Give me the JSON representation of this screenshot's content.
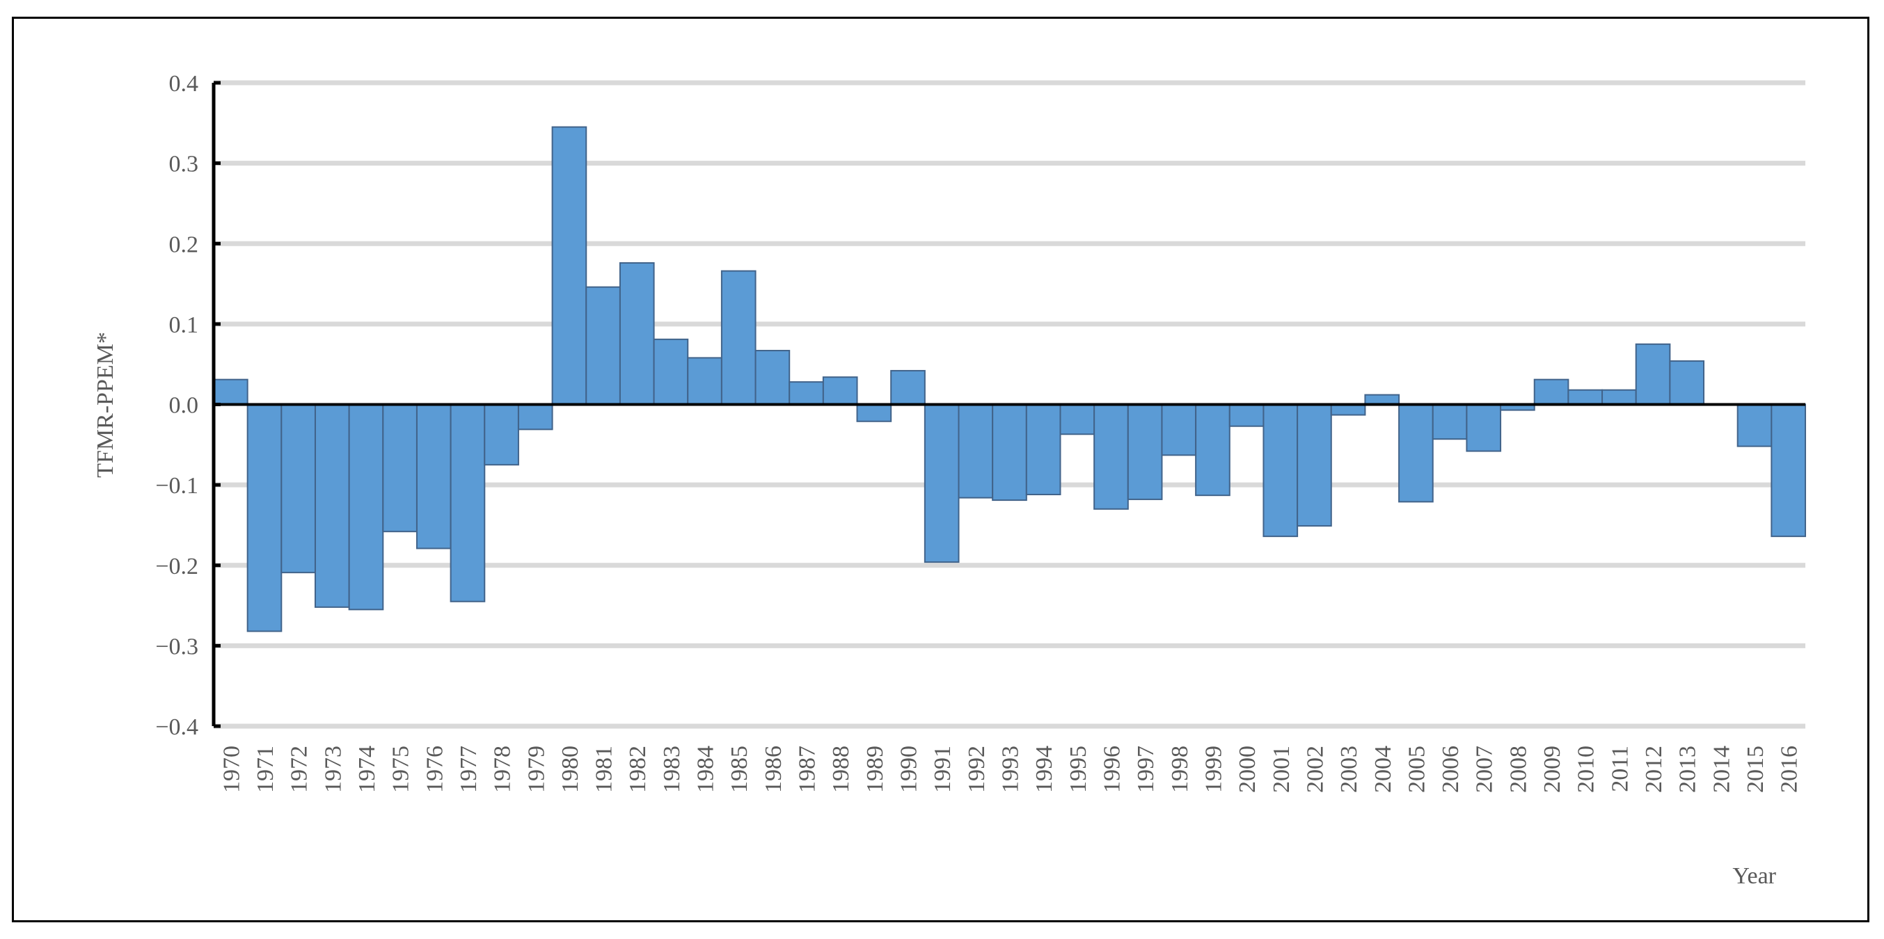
{
  "chart_data": {
    "type": "bar",
    "title": "",
    "xlabel": "Year",
    "ylabel": "TFMR-PPEM*",
    "ylim": [
      -0.4,
      0.4
    ],
    "yticks": [
      "0.4",
      "0.3",
      "0.2",
      "0.1",
      "0.0",
      "−0.1",
      "−0.2",
      "−0.3",
      "−0.4"
    ],
    "ytick_values": [
      0.4,
      0.3,
      0.2,
      0.1,
      0,
      -0.1,
      -0.2,
      -0.3,
      -0.4
    ],
    "grid": "horizontal",
    "bar_color": "#5b9bd5",
    "bar_edge_color": "#41638a",
    "categories": [
      "1970",
      "1971",
      "1972",
      "1973",
      "1974",
      "1975",
      "1976",
      "1977",
      "1978",
      "1979",
      "1980",
      "1981",
      "1982",
      "1983",
      "1984",
      "1985",
      "1986",
      "1987",
      "1988",
      "1989",
      "1990",
      "1991",
      "1992",
      "1993",
      "1994",
      "1995",
      "1996",
      "1997",
      "1998",
      "1999",
      "2000",
      "2001",
      "2002",
      "2003",
      "2004",
      "2005",
      "2006",
      "2007",
      "2008",
      "2009",
      "2010",
      "2011",
      "2012",
      "2013",
      "2014",
      "2015",
      "2016"
    ],
    "values": [
      0.031,
      -0.282,
      -0.209,
      -0.252,
      -0.255,
      -0.158,
      -0.179,
      -0.245,
      -0.075,
      -0.031,
      0.345,
      0.146,
      0.176,
      0.081,
      0.058,
      0.166,
      0.067,
      0.028,
      0.034,
      -0.021,
      0.042,
      -0.196,
      -0.116,
      -0.119,
      -0.112,
      -0.037,
      -0.13,
      -0.118,
      -0.063,
      -0.113,
      -0.027,
      -0.164,
      -0.151,
      -0.013,
      0.012,
      -0.121,
      -0.043,
      -0.058,
      -0.007,
      0.031,
      0.018,
      0.018,
      0.075,
      0.054,
      0.0,
      -0.052,
      -0.164
    ]
  }
}
